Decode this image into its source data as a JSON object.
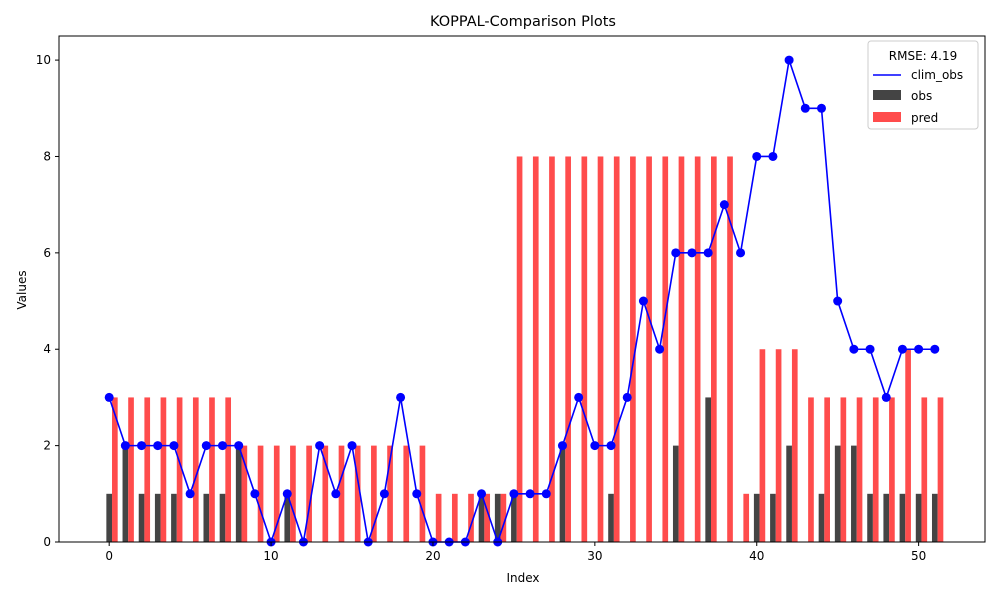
{
  "chart_data": {
    "type": "bar",
    "title": "KOPPAL-Comparison Plots",
    "xlabel": "Index",
    "ylabel": "Values",
    "xlim": [
      -3.1,
      54.1
    ],
    "ylim": [
      0,
      10.5
    ],
    "xticks": [
      0,
      10,
      20,
      30,
      40,
      50
    ],
    "yticks": [
      0,
      2,
      4,
      6,
      8,
      10
    ],
    "grid": false,
    "legend": {
      "placement": "top-right",
      "title": "RMSE: 4.19",
      "entries": [
        "clim_obs",
        "obs",
        "pred"
      ]
    },
    "x": [
      0,
      1,
      2,
      3,
      4,
      5,
      6,
      7,
      8,
      9,
      10,
      11,
      12,
      13,
      14,
      15,
      16,
      17,
      18,
      19,
      20,
      21,
      22,
      23,
      24,
      25,
      26,
      27,
      28,
      29,
      30,
      31,
      32,
      33,
      34,
      35,
      36,
      37,
      38,
      39,
      40,
      41,
      42,
      43,
      44,
      45,
      46,
      47,
      48,
      49,
      50,
      51
    ],
    "series": [
      {
        "name": "clim_obs",
        "kind": "line",
        "color": "#0000ff",
        "values": [
          3,
          2,
          2,
          2,
          2,
          1,
          2,
          2,
          2,
          1,
          0,
          1,
          0,
          2,
          1,
          2,
          0,
          1,
          3,
          1,
          0,
          0,
          0,
          1,
          0,
          1,
          1,
          1,
          2,
          3,
          2,
          2,
          3,
          5,
          4,
          6,
          6,
          6,
          7,
          6,
          8,
          8,
          10,
          9,
          9,
          5,
          4,
          4,
          3,
          4,
          4,
          4
        ]
      },
      {
        "name": "obs",
        "kind": "bar",
        "color": "#444444",
        "values": [
          1,
          2,
          1,
          1,
          1,
          0,
          1,
          1,
          2,
          0,
          0,
          1,
          0,
          0,
          0,
          0,
          0,
          0,
          0,
          0,
          0,
          0,
          0,
          1,
          1,
          1,
          0,
          0,
          2,
          0,
          0,
          1,
          0,
          0,
          0,
          2,
          0,
          3,
          0,
          0,
          1,
          1,
          2,
          0,
          1,
          2,
          2,
          1,
          1,
          1,
          1,
          1
        ]
      },
      {
        "name": "pred",
        "kind": "bar",
        "color": "#ff4c4c",
        "values": [
          3,
          3,
          3,
          3,
          3,
          3,
          3,
          3,
          2,
          2,
          2,
          2,
          2,
          2,
          2,
          2,
          2,
          2,
          2,
          2,
          1,
          1,
          1,
          1,
          1,
          8,
          8,
          8,
          8,
          8,
          8,
          8,
          8,
          8,
          8,
          8,
          8,
          8,
          8,
          1,
          4,
          4,
          4,
          3,
          3,
          3,
          3,
          3,
          3,
          4,
          3,
          3
        ]
      }
    ]
  }
}
